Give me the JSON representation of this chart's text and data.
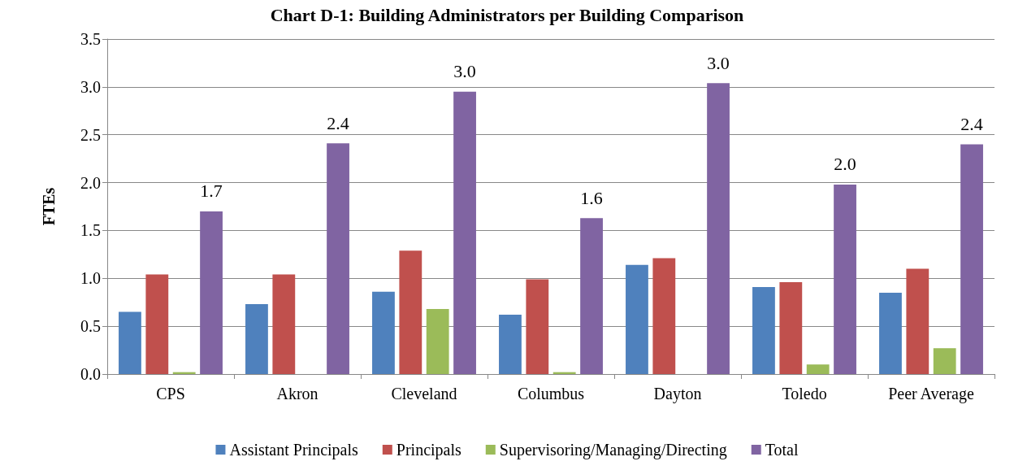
{
  "chart_data": {
    "type": "bar",
    "title": "Chart D-1: Building Administrators per Building Comparison",
    "ylabel": "FTEs",
    "categories": [
      "CPS",
      "Akron",
      "Cleveland",
      "Columbus",
      "Dayton",
      "Toledo",
      "Peer Average"
    ],
    "series": [
      {
        "name": "Assistant Principals",
        "color": "#4f81bd",
        "values": [
          0.65,
          0.73,
          0.86,
          0.62,
          1.14,
          0.91,
          0.85
        ]
      },
      {
        "name": "Principals",
        "color": "#c0504d",
        "values": [
          1.04,
          1.04,
          1.29,
          0.99,
          1.21,
          0.96,
          1.1
        ]
      },
      {
        "name": "Supervisoring/Managing/Directing",
        "color": "#9bbb59",
        "values": [
          0.02,
          0,
          0.68,
          0.02,
          0,
          0.1,
          0.27
        ]
      },
      {
        "name": "Total",
        "color": "#8064a2",
        "values": [
          1.7,
          2.41,
          2.95,
          1.63,
          3.04,
          1.98,
          2.4
        ],
        "value_labels": [
          "1.7",
          "2.4",
          "3.0",
          "1.6",
          "3.0",
          "2.0",
          "2.4"
        ]
      }
    ],
    "ylim": [
      0,
      3.5
    ],
    "yticks": [
      {
        "value": 0,
        "label": "0.0"
      },
      0.5,
      {
        "value": 1,
        "label": "1.0"
      },
      1.5,
      {
        "value": 2,
        "label": "2.0"
      },
      2.5,
      {
        "value": 3,
        "label": "3.0"
      },
      3.5
    ],
    "grid": "y",
    "legend": "bottom"
  }
}
